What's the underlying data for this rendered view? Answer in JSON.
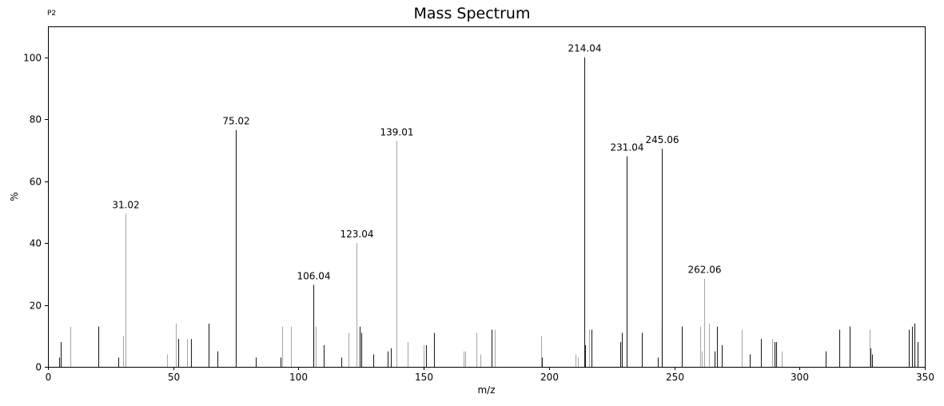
{
  "figure": {
    "title": "Mass Spectrum",
    "corner_tag": "P2"
  },
  "chart_data": {
    "type": "bar",
    "title": "Mass Spectrum",
    "xlabel": "m/z",
    "ylabel": "%",
    "xlim": [
      0,
      350
    ],
    "ylim": [
      0,
      110
    ],
    "xticks": [
      0,
      50,
      100,
      150,
      200,
      250,
      300,
      350
    ],
    "yticks": [
      0,
      20,
      40,
      60,
      80,
      100
    ],
    "grid": false,
    "legend": "none",
    "colors": {
      "dark": "#222222",
      "light": "#aaaaaa",
      "axis": "#000000"
    },
    "series": [
      {
        "peaks": [
          {
            "mz": 4.5,
            "intensity": 3,
            "shade": "dark"
          },
          {
            "mz": 5.0,
            "intensity": 8,
            "shade": "dark"
          },
          {
            "mz": 9.0,
            "intensity": 13,
            "shade": "light"
          },
          {
            "mz": 20.0,
            "intensity": 13,
            "shade": "dark"
          },
          {
            "mz": 28.0,
            "intensity": 3,
            "shade": "dark"
          },
          {
            "mz": 30.0,
            "intensity": 10,
            "shade": "light"
          },
          {
            "mz": 31.02,
            "intensity": 49.5,
            "shade": "light",
            "label": "31.02"
          },
          {
            "mz": 47.5,
            "intensity": 4,
            "shade": "light"
          },
          {
            "mz": 51.0,
            "intensity": 14,
            "shade": "light"
          },
          {
            "mz": 52.0,
            "intensity": 9,
            "shade": "dark"
          },
          {
            "mz": 55.5,
            "intensity": 9,
            "shade": "light"
          },
          {
            "mz": 57.0,
            "intensity": 9,
            "shade": "dark"
          },
          {
            "mz": 64.0,
            "intensity": 14,
            "shade": "dark"
          },
          {
            "mz": 67.5,
            "intensity": 5,
            "shade": "dark"
          },
          {
            "mz": 75.02,
            "intensity": 76.5,
            "shade": "dark",
            "label": "75.02"
          },
          {
            "mz": 83.0,
            "intensity": 3,
            "shade": "dark"
          },
          {
            "mz": 93.0,
            "intensity": 3,
            "shade": "dark"
          },
          {
            "mz": 93.5,
            "intensity": 13,
            "shade": "light"
          },
          {
            "mz": 97.0,
            "intensity": 13,
            "shade": "light"
          },
          {
            "mz": 106.0,
            "intensity": 12,
            "shade": "dark"
          },
          {
            "mz": 106.04,
            "intensity": 26.5,
            "shade": "dark",
            "label": "106.04"
          },
          {
            "mz": 107.0,
            "intensity": 13,
            "shade": "light"
          },
          {
            "mz": 110.0,
            "intensity": 7,
            "shade": "dark"
          },
          {
            "mz": 117.0,
            "intensity": 3,
            "shade": "dark"
          },
          {
            "mz": 120.0,
            "intensity": 11,
            "shade": "light"
          },
          {
            "mz": 123.04,
            "intensity": 40,
            "shade": "light",
            "label": "123.04"
          },
          {
            "mz": 124.5,
            "intensity": 13,
            "shade": "dark"
          },
          {
            "mz": 125.0,
            "intensity": 11,
            "shade": "dark"
          },
          {
            "mz": 130.0,
            "intensity": 4,
            "shade": "dark"
          },
          {
            "mz": 135.5,
            "intensity": 5,
            "shade": "dark"
          },
          {
            "mz": 137.0,
            "intensity": 6,
            "shade": "dark"
          },
          {
            "mz": 139.01,
            "intensity": 73,
            "shade": "light",
            "label": "139.01"
          },
          {
            "mz": 143.5,
            "intensity": 8,
            "shade": "light"
          },
          {
            "mz": 150.0,
            "intensity": 7,
            "shade": "light"
          },
          {
            "mz": 151.0,
            "intensity": 7,
            "shade": "dark"
          },
          {
            "mz": 154.0,
            "intensity": 11,
            "shade": "dark"
          },
          {
            "mz": 166.0,
            "intensity": 5,
            "shade": "light"
          },
          {
            "mz": 166.7,
            "intensity": 5,
            "shade": "light"
          },
          {
            "mz": 171.0,
            "intensity": 11,
            "shade": "light"
          },
          {
            "mz": 172.5,
            "intensity": 4,
            "shade": "light"
          },
          {
            "mz": 177.0,
            "intensity": 12,
            "shade": "dark"
          },
          {
            "mz": 178.5,
            "intensity": 12,
            "shade": "light"
          },
          {
            "mz": 197.0,
            "intensity": 10,
            "shade": "light"
          },
          {
            "mz": 197.3,
            "intensity": 3,
            "shade": "dark"
          },
          {
            "mz": 210.5,
            "intensity": 4,
            "shade": "light"
          },
          {
            "mz": 211.5,
            "intensity": 3,
            "shade": "light"
          },
          {
            "mz": 214.04,
            "intensity": 100,
            "shade": "dark",
            "label": "214.04"
          },
          {
            "mz": 214.5,
            "intensity": 7,
            "shade": "dark"
          },
          {
            "mz": 216.0,
            "intensity": 12,
            "shade": "light"
          },
          {
            "mz": 217.0,
            "intensity": 12,
            "shade": "dark"
          },
          {
            "mz": 228.5,
            "intensity": 8,
            "shade": "dark"
          },
          {
            "mz": 229.0,
            "intensity": 11,
            "shade": "dark"
          },
          {
            "mz": 231.04,
            "intensity": 68,
            "shade": "dark",
            "label": "231.04"
          },
          {
            "mz": 237.0,
            "intensity": 11,
            "shade": "dark"
          },
          {
            "mz": 243.5,
            "intensity": 3,
            "shade": "dark"
          },
          {
            "mz": 245.0,
            "intensity": 13,
            "shade": "dark"
          },
          {
            "mz": 245.06,
            "intensity": 70.5,
            "shade": "dark",
            "label": "245.06"
          },
          {
            "mz": 253.0,
            "intensity": 13,
            "shade": "dark"
          },
          {
            "mz": 260.5,
            "intensity": 13,
            "shade": "light"
          },
          {
            "mz": 261.0,
            "intensity": 5,
            "shade": "light"
          },
          {
            "mz": 262.06,
            "intensity": 28.5,
            "shade": "light",
            "label": "262.06"
          },
          {
            "mz": 264.0,
            "intensity": 14,
            "shade": "light"
          },
          {
            "mz": 266.0,
            "intensity": 5,
            "shade": "dark"
          },
          {
            "mz": 267.0,
            "intensity": 13,
            "shade": "dark"
          },
          {
            "mz": 269.0,
            "intensity": 7,
            "shade": "dark"
          },
          {
            "mz": 277.0,
            "intensity": 12,
            "shade": "light"
          },
          {
            "mz": 280.0,
            "intensity": 4,
            "shade": "dark"
          },
          {
            "mz": 284.5,
            "intensity": 9,
            "shade": "dark"
          },
          {
            "mz": 289.0,
            "intensity": 9,
            "shade": "light"
          },
          {
            "mz": 290.0,
            "intensity": 8,
            "shade": "dark"
          },
          {
            "mz": 290.7,
            "intensity": 8,
            "shade": "dark"
          },
          {
            "mz": 293.0,
            "intensity": 5,
            "shade": "light"
          },
          {
            "mz": 310.5,
            "intensity": 5,
            "shade": "dark"
          },
          {
            "mz": 316.0,
            "intensity": 12,
            "shade": "dark"
          },
          {
            "mz": 320.0,
            "intensity": 13,
            "shade": "dark"
          },
          {
            "mz": 328.0,
            "intensity": 12,
            "shade": "light"
          },
          {
            "mz": 328.2,
            "intensity": 6,
            "shade": "dark"
          },
          {
            "mz": 328.8,
            "intensity": 4,
            "shade": "dark"
          },
          {
            "mz": 343.5,
            "intensity": 12,
            "shade": "dark"
          },
          {
            "mz": 345.0,
            "intensity": 13,
            "shade": "dark"
          },
          {
            "mz": 346.0,
            "intensity": 14,
            "shade": "dark"
          },
          {
            "mz": 347.0,
            "intensity": 8,
            "shade": "dark"
          }
        ]
      }
    ]
  }
}
